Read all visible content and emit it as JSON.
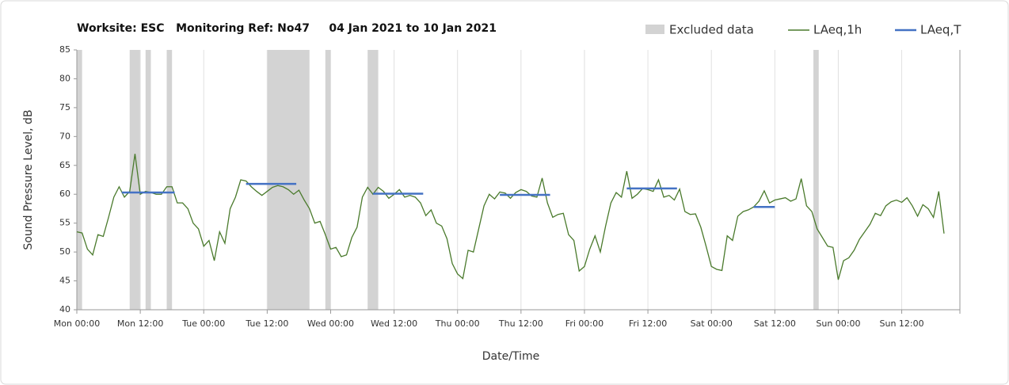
{
  "chart_data": {
    "type": "line",
    "title": "Worksite: ESC   Monitoring Ref: No47     04 Jan 2021 to 10 Jan 2021",
    "x_label": "Date/Time",
    "y_label": "Sound Pressure Level, dB",
    "xlim": [
      0,
      167
    ],
    "ylim": [
      40,
      85
    ],
    "yticks": [
      40,
      45,
      50,
      55,
      60,
      65,
      70,
      75,
      80,
      85
    ],
    "xticks": [
      {
        "value": 0,
        "label": "Mon 00:00"
      },
      {
        "value": 12,
        "label": "Mon 12:00"
      },
      {
        "value": 24,
        "label": "Tue 00:00"
      },
      {
        "value": 36,
        "label": "Tue 12:00"
      },
      {
        "value": 48,
        "label": "Wed 00:00"
      },
      {
        "value": 60,
        "label": "Wed 12:00"
      },
      {
        "value": 72,
        "label": "Thu 00:00"
      },
      {
        "value": 84,
        "label": "Thu 12:00"
      },
      {
        "value": 96,
        "label": "Fri 00:00"
      },
      {
        "value": 108,
        "label": "Fri 12:00"
      },
      {
        "value": 120,
        "label": "Sat 00:00"
      },
      {
        "value": 132,
        "label": "Sat 12:00"
      },
      {
        "value": 144,
        "label": "Sun 00:00"
      },
      {
        "value": 156,
        "label": "Sun 12:00"
      }
    ],
    "grid": true,
    "excluded": {
      "name": "Excluded data",
      "color": "#d3d3d3",
      "ranges": [
        [
          0,
          1
        ],
        [
          10,
          12
        ],
        [
          13,
          14
        ],
        [
          17,
          18
        ],
        [
          36,
          44
        ],
        [
          47,
          48
        ],
        [
          55,
          57
        ],
        [
          139.3,
          140.3
        ]
      ]
    },
    "series": [
      {
        "name": "LAeq,1h",
        "color": "#4a7a2c",
        "x": [
          0,
          1,
          2,
          3,
          4,
          5,
          6,
          7,
          8,
          9,
          10,
          11,
          12,
          13,
          14,
          15,
          16,
          17,
          18,
          19,
          20,
          21,
          22,
          23,
          24,
          25,
          26,
          27,
          28,
          29,
          30,
          31,
          32,
          33,
          34,
          35,
          36,
          37,
          38,
          39,
          40,
          41,
          42,
          43,
          44,
          45,
          46,
          47,
          48,
          49,
          50,
          51,
          52,
          53,
          54,
          55,
          56,
          57,
          58,
          59,
          60,
          61,
          62,
          63,
          64,
          65,
          66,
          67,
          68,
          69,
          70,
          71,
          72,
          73,
          74,
          75,
          76,
          77,
          78,
          79,
          80,
          81,
          82,
          83,
          84,
          85,
          86,
          87,
          88,
          89,
          90,
          91,
          92,
          93,
          94,
          95,
          96,
          97,
          98,
          99,
          100,
          101,
          102,
          103,
          104,
          105,
          106,
          107,
          108,
          109,
          110,
          111,
          112,
          113,
          114,
          115,
          116,
          117,
          118,
          119,
          120,
          121,
          122,
          123,
          124,
          125,
          126,
          127,
          128,
          129,
          130,
          131,
          132,
          133,
          134,
          135,
          136,
          137,
          138,
          139,
          140,
          141,
          142,
          143,
          144,
          145,
          146,
          147,
          148,
          149,
          150,
          151,
          152,
          153,
          154,
          155,
          156,
          157,
          158,
          159,
          160,
          161,
          162,
          163,
          164
        ],
        "values": [
          53.5,
          53.3,
          50.5,
          49.5,
          53,
          52.7,
          56,
          59.5,
          61.3,
          59.5,
          60.5,
          67,
          60,
          60.5,
          60.3,
          60,
          60,
          61.3,
          61.3,
          58.5,
          58.5,
          57.5,
          55,
          54,
          51,
          52,
          48.5,
          53.5,
          51.5,
          57.5,
          59.5,
          62.5,
          62.3,
          61.3,
          60.5,
          59.8,
          60.5,
          61.2,
          61.5,
          61.3,
          60.8,
          60,
          60.7,
          59,
          57.5,
          55,
          55.3,
          53,
          50.5,
          50.8,
          49.2,
          49.5,
          52.5,
          54.3,
          59.5,
          61.2,
          60,
          61.2,
          60.5,
          59.3,
          60,
          60.8,
          59.5,
          59.8,
          59.5,
          58.5,
          56.3,
          57.3,
          55,
          54.5,
          52.3,
          48,
          46.2,
          45.4,
          50.3,
          50,
          54,
          58,
          60,
          59.2,
          60.4,
          60.2,
          59.3,
          60.3,
          60.8,
          60.5,
          59.7,
          59.5,
          62.8,
          58.5,
          56,
          56.5,
          56.7,
          53,
          52,
          46.7,
          47.5,
          50.5,
          52.8,
          50,
          54.5,
          58.5,
          60.3,
          59.5,
          64,
          59.3,
          60,
          61,
          60.8,
          60.5,
          62.5,
          59.5,
          59.8,
          59,
          60.9,
          57,
          56.5,
          56.6,
          54.3,
          51,
          47.5,
          47,
          46.8,
          52.8,
          52,
          56.2,
          57,
          57.3,
          57.8,
          58.8,
          60.6,
          58.5,
          59,
          59.2,
          59.4,
          58.8,
          59.2,
          62.7,
          58,
          57,
          54,
          52.5,
          51,
          50.8,
          45.2,
          48.5,
          49,
          50.3,
          52.2,
          53.5,
          54.8,
          56.7,
          56.3,
          58,
          58.7,
          59,
          58.6,
          59.4,
          58,
          56.2,
          58.2,
          57.5,
          56,
          60.5,
          53.2
        ]
      }
    ],
    "periods": {
      "name": "LAeq,T",
      "color": "#4472c4",
      "items": [
        {
          "start": 8.5,
          "end": 18.5,
          "value": 60.3
        },
        {
          "start": 32,
          "end": 41.5,
          "value": 61.8
        },
        {
          "start": 56,
          "end": 65.5,
          "value": 60.1
        },
        {
          "start": 80,
          "end": 89.5,
          "value": 59.9
        },
        {
          "start": 104,
          "end": 113.5,
          "value": 61
        },
        {
          "start": 128,
          "end": 132,
          "value": 57.8
        }
      ]
    }
  }
}
